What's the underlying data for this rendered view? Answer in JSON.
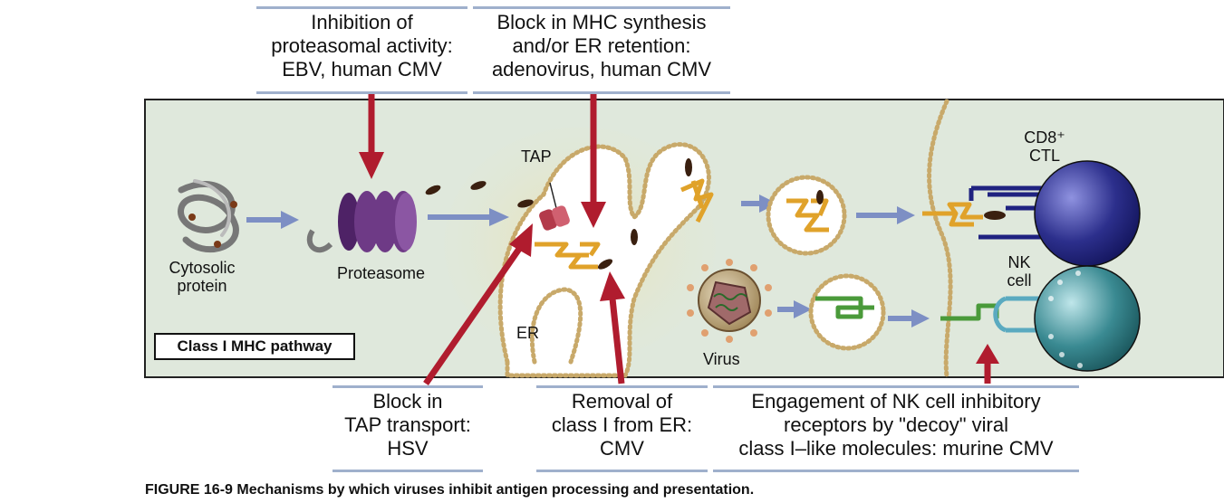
{
  "callouts": {
    "proteasome_inhibition": [
      "Inhibition of",
      "proteasomal activity:",
      "EBV, human CMV"
    ],
    "mhc_block": [
      "Block in MHC synthesis",
      "and/or ER retention:",
      "adenovirus, human CMV"
    ],
    "tap_block": [
      "Block in",
      "TAP transport:",
      "HSV"
    ],
    "er_removal": [
      "Removal of",
      "class I from ER:",
      "CMV"
    ],
    "nk_decoy": [
      "Engagement of NK cell inhibitory",
      "receptors by \"decoy\" viral",
      "class I–like molecules: murine CMV"
    ]
  },
  "labels": {
    "cytosolic_protein": [
      "Cytosolic",
      "protein"
    ],
    "proteasome": "Proteasome",
    "tap": "TAP",
    "er": "ER",
    "virus": "Virus",
    "cd8_ctl": [
      "CD8⁺",
      "CTL"
    ],
    "nk_cell": [
      "NK",
      "cell"
    ]
  },
  "pathway_label": "Class I MHC pathway",
  "caption": "FIGURE 16-9 Mechanisms by which viruses inhibit antigen processing and presentation.",
  "colors": {
    "cell_fill": "#dfe8dc",
    "er_lumen": "#ffffff",
    "er_glow": "#ece3b0",
    "membrane": "#c8a96a",
    "inhibition_arrow": "#b01c2e",
    "flow_arrow": "#7d8fc4",
    "proteasome": "#6e3a86",
    "mhc_molecule": "#e0a22a",
    "peptide": "#3a2010",
    "ctl": "#2c2f8c",
    "nk": "#3a8a92",
    "viral_decoy": "#4a9a3a",
    "callout_border": "#9fb0cc"
  }
}
